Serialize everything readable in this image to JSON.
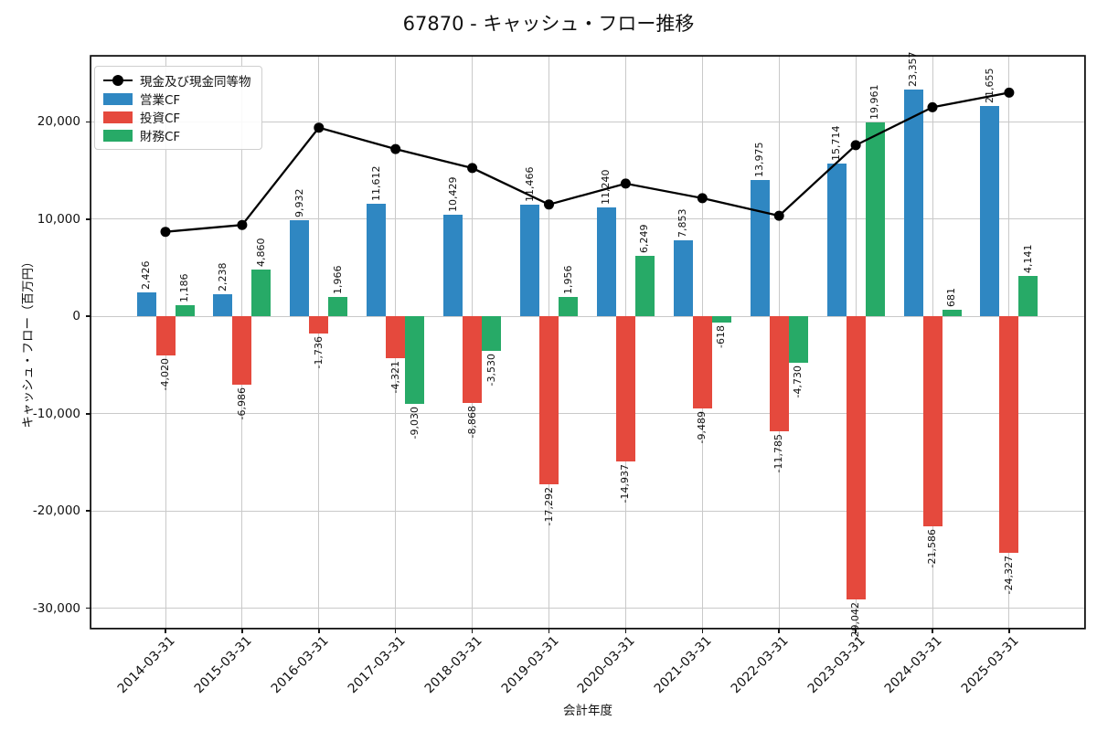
{
  "chart_data": {
    "type": "bar",
    "title": "67870 - キャッシュ・フロー推移",
    "xlabel": "会計年度",
    "ylabel": "キャッシュ・フロー（百万円）",
    "categories": [
      "2014-03-31",
      "2015-03-31",
      "2016-03-31",
      "2017-03-31",
      "2018-03-31",
      "2019-03-31",
      "2020-03-31",
      "2021-03-31",
      "2022-03-31",
      "2023-03-31",
      "2024-03-31",
      "2025-03-31"
    ],
    "series": [
      {
        "name": "現金及び現金同等物",
        "type": "line",
        "color": "#000000",
        "values": [
          8700,
          9400,
          19400,
          17200,
          15250,
          11500,
          13650,
          12150,
          10350,
          17600,
          21500,
          23000
        ]
      },
      {
        "name": "営業CF",
        "type": "bar",
        "color": "#2f87c2",
        "values": [
          2426,
          2238,
          9932,
          11612,
          10429,
          11466,
          11240,
          7853,
          13975,
          15714,
          23357,
          21655
        ]
      },
      {
        "name": "投資CF",
        "type": "bar",
        "color": "#e5493d",
        "values": [
          -4020,
          -6986,
          -1736,
          -4321,
          -8868,
          -17292,
          -14937,
          -9489,
          -11785,
          -29042,
          -21586,
          -24327
        ]
      },
      {
        "name": "財務CF",
        "type": "bar",
        "color": "#27aa67",
        "values": [
          1186,
          4860,
          1966,
          -9030,
          -3530,
          1956,
          6249,
          -618,
          -4730,
          19961,
          681,
          4141
        ]
      }
    ],
    "yticks": [
      20000,
      10000,
      0,
      -10000,
      -20000,
      -30000
    ],
    "ylim": [
      -32000,
      26700
    ],
    "grid": true,
    "legend_position": "upper-left",
    "bar_value_labels": true
  }
}
